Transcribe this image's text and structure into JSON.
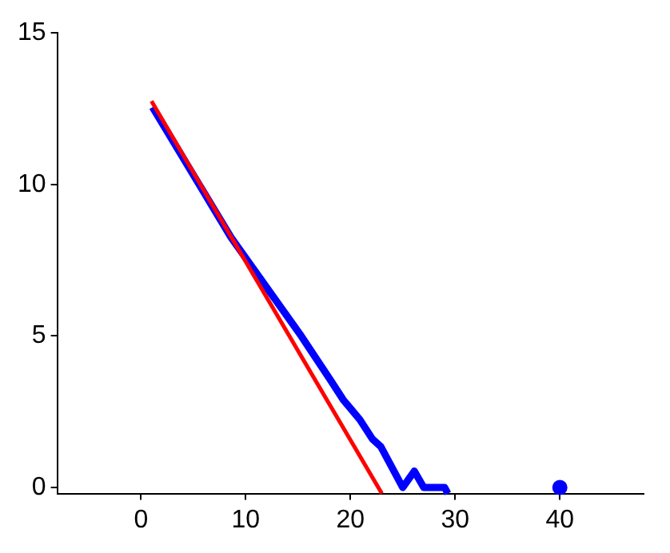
{
  "chart_data": {
    "type": "line",
    "xlim": [
      -8,
      48
    ],
    "ylim": [
      -0.2,
      15
    ],
    "xticks": [
      0,
      10,
      20,
      30,
      40
    ],
    "yticks": [
      0,
      5,
      10,
      15
    ],
    "grid": false,
    "legend": false,
    "marker": "none",
    "line_style": "solid",
    "series": [
      {
        "color": "#ff0000",
        "x": [
          1,
          23
        ],
        "values": [
          12.75,
          -0.2
        ]
      },
      {
        "color": "#0000ff",
        "x": [
          1.1,
          8.6,
          15.3,
          18.1,
          19.3,
          20.9,
          22.1,
          22.9,
          25,
          26.1,
          27,
          29,
          29.3
        ],
        "values": [
          12.55,
          8.25,
          5.0,
          3.54,
          2.9,
          2.24,
          1.6,
          1.35,
          0,
          0.54,
          0,
          0,
          -0.2
        ]
      },
      {
        "type": "scatter",
        "marker": "circle",
        "color": "#0000ff",
        "x": [
          40
        ],
        "values": [
          0
        ]
      }
    ]
  }
}
